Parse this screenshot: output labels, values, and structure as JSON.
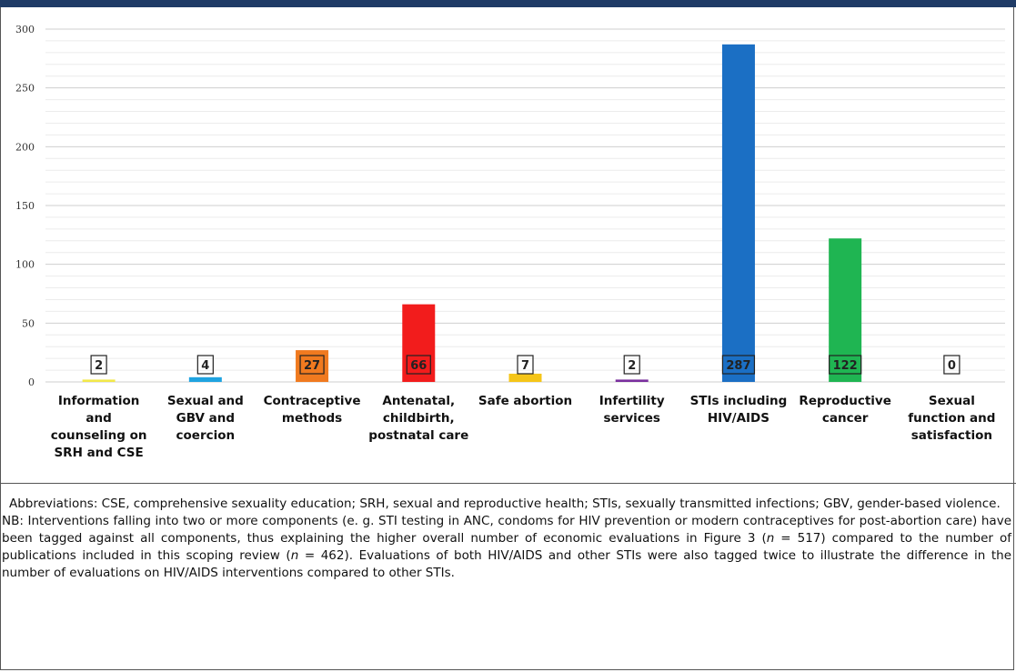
{
  "notes": {
    "abbreviations": "Abbreviations: CSE, comprehensive sexuality education; SRH, sexual and reproductive health; STIs, sexually transmitted infections; GBV, gender-based violence.",
    "nb_prefix": "NB: Interventions falling into two or more components (e. g. STI testing in ANC, condoms for HIV prevention or modern contraceptives for post-abortion care) have been tagged against all components, thus explaining the higher overall number of economic evaluations in Figure 3 (",
    "nb_n1": "n",
    "nb_mid1": " = 517) compared to the number of publications included in this scoping review (",
    "nb_n2": "n",
    "nb_suffix": " = 462). Evaluations of both HIV/AIDS and other STIs were also tagged twice to illustrate the difference in the number of evaluations on HIV/AIDS interventions compared to other STIs."
  },
  "chart_data": {
    "type": "bar",
    "categories": [
      "Information and counseling on SRH and CSE",
      "Sexual and GBV and coercion",
      "Contraceptive methods",
      "Antenatal, childbirth, postnatal care",
      "Safe abortion",
      "Infertility services",
      "STIs including HIV/AIDS",
      "Reproductive cancer",
      "Sexual function and satisfaction"
    ],
    "category_lines": [
      [
        "Information",
        "and",
        "counseling on",
        "SRH and CSE"
      ],
      [
        "Sexual and",
        "GBV and",
        "coercion"
      ],
      [
        "Contraceptive",
        "methods"
      ],
      [
        "Antenatal,",
        "childbirth,",
        "postnatal care"
      ],
      [
        "Safe abortion"
      ],
      [
        "Infertility",
        "services"
      ],
      [
        "STIs including",
        "HIV/AIDS"
      ],
      [
        "Reproductive",
        "cancer"
      ],
      [
        "Sexual",
        "function and",
        "satisfaction"
      ]
    ],
    "values": [
      2,
      4,
      27,
      66,
      7,
      2,
      287,
      122,
      0
    ],
    "data_labels": [
      "2",
      "4",
      "27",
      "66",
      "7",
      "2",
      "287",
      "122",
      "0"
    ],
    "colors": [
      "#f2e84a",
      "#1fa3e0",
      "#f07a1f",
      "#f21c1c",
      "#f5c518",
      "#7a2f9e",
      "#1b6fc4",
      "#1fb552",
      "#ffffff"
    ],
    "ylim": [
      0,
      300
    ],
    "yticks": [
      0,
      50,
      100,
      150,
      200,
      250,
      300
    ],
    "yticks_labels": [
      "0",
      "50",
      "100",
      "150",
      "200",
      "250",
      "300"
    ],
    "grid": true,
    "legend": "none"
  }
}
